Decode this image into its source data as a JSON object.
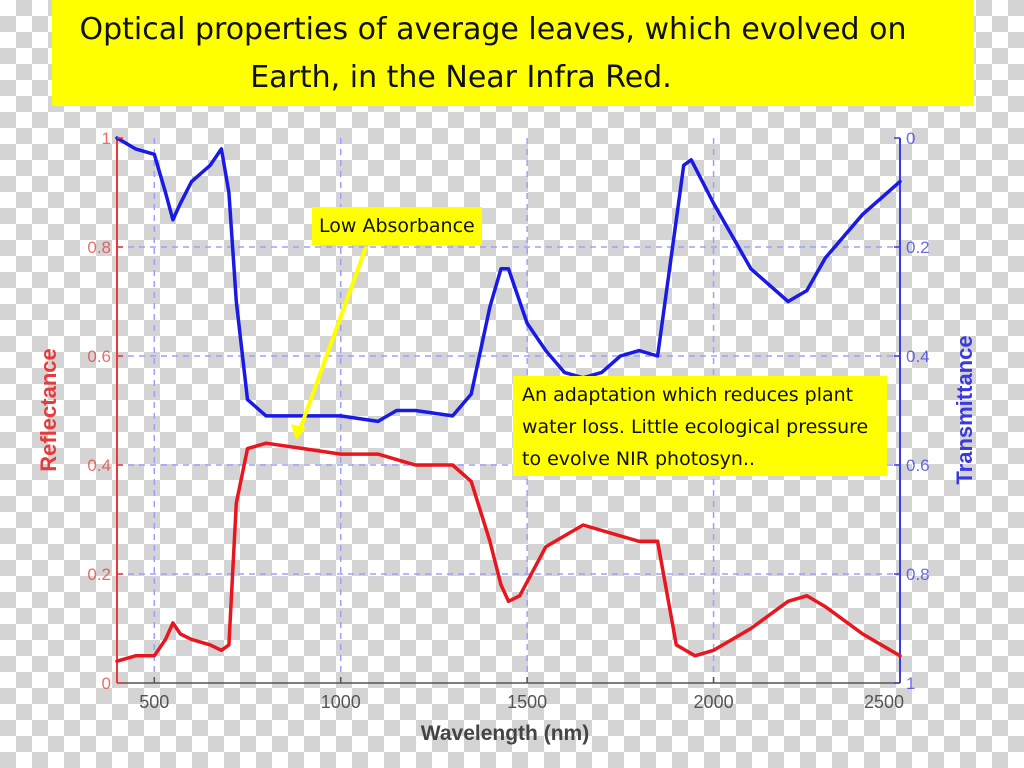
{
  "title": {
    "line1": "Optical properties of average leaves, which evolved on",
    "line2": "Earth, in the Near Infra Red."
  },
  "annotations": {
    "low_absorbance": "Low Absorbance",
    "adaptation": "An adaptation which reduces plant water loss. Little ecological pressure to evolve NIR photosyn.."
  },
  "colors": {
    "title_background": "#ffff00",
    "reflectance": "#e8161e",
    "transmittance": "#1a1ae6",
    "reflectance_axis": "#e83a3a",
    "transmittance_axis": "#3a3ae0",
    "grid": "#9aa0ff",
    "arrow": "#ffff00"
  },
  "chart_data": {
    "type": "line",
    "xlabel": "Wavelength (nm)",
    "ylabel_left": "Reflectance",
    "ylabel_right": "Transmittance",
    "xlim": [
      400,
      2500
    ],
    "ylim_left": [
      0,
      1
    ],
    "ylim_right": [
      0,
      1
    ],
    "right_axis_inverted": true,
    "grid": true,
    "x_ticks": [
      "500",
      "1000",
      "1500",
      "2000",
      "2500"
    ],
    "x_tick_values": [
      500,
      1000,
      1500,
      2000,
      2500
    ],
    "y_left_ticks": [
      "0",
      "0.2",
      "0.4",
      "0.6",
      "0.8",
      "1"
    ],
    "y_left_tick_values": [
      0,
      0.2,
      0.4,
      0.6,
      0.8,
      1
    ],
    "y_right_ticks": [
      "0",
      "0.2",
      "0.4",
      "0.6",
      "0.8",
      "1"
    ],
    "y_right_tick_values": [
      0,
      0.2,
      0.4,
      0.6,
      0.8,
      1
    ],
    "series": [
      {
        "name": "Reflectance",
        "axis": "left",
        "x": [
          400,
          450,
          500,
          530,
          550,
          570,
          600,
          650,
          680,
          700,
          720,
          750,
          800,
          900,
          1000,
          1100,
          1150,
          1200,
          1300,
          1350,
          1400,
          1430,
          1450,
          1480,
          1550,
          1650,
          1750,
          1800,
          1850,
          1900,
          1950,
          2000,
          2100,
          2200,
          2250,
          2300,
          2400,
          2500
        ],
        "y": [
          0.04,
          0.05,
          0.05,
          0.08,
          0.11,
          0.09,
          0.08,
          0.07,
          0.06,
          0.07,
          0.33,
          0.43,
          0.44,
          0.43,
          0.42,
          0.42,
          0.41,
          0.4,
          0.4,
          0.37,
          0.26,
          0.18,
          0.15,
          0.16,
          0.25,
          0.29,
          0.27,
          0.26,
          0.26,
          0.07,
          0.05,
          0.06,
          0.1,
          0.15,
          0.16,
          0.14,
          0.09,
          0.05
        ]
      },
      {
        "name": "Transmittance",
        "axis": "right",
        "x": [
          400,
          450,
          500,
          530,
          550,
          570,
          600,
          650,
          680,
          700,
          720,
          750,
          800,
          900,
          1000,
          1100,
          1150,
          1200,
          1300,
          1350,
          1400,
          1430,
          1450,
          1480,
          1500,
          1550,
          1600,
          1650,
          1700,
          1750,
          1800,
          1850,
          1900,
          1920,
          1940,
          2000,
          2100,
          2200,
          2250,
          2300,
          2400,
          2500
        ],
        "y": [
          0.0,
          0.02,
          0.03,
          0.1,
          0.15,
          0.12,
          0.08,
          0.05,
          0.02,
          0.1,
          0.3,
          0.48,
          0.51,
          0.51,
          0.51,
          0.52,
          0.5,
          0.5,
          0.51,
          0.47,
          0.31,
          0.24,
          0.24,
          0.3,
          0.34,
          0.39,
          0.43,
          0.44,
          0.43,
          0.4,
          0.39,
          0.4,
          0.15,
          0.05,
          0.04,
          0.12,
          0.24,
          0.3,
          0.28,
          0.22,
          0.14,
          0.08
        ]
      }
    ]
  }
}
